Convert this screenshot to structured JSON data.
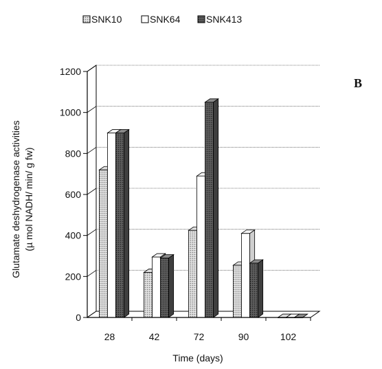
{
  "panel_label": "B",
  "chart_data": {
    "type": "bar",
    "title": "",
    "xlabel": "Time (days)",
    "ylabel_line1": "Glutamate deshydrogenase activities",
    "ylabel_line2": "(µ mol NADH/ min/ g fw)",
    "categories": [
      "28",
      "42",
      "72",
      "90",
      "102"
    ],
    "ylim": [
      0,
      1200
    ],
    "yticks": [
      "0",
      "200",
      "400",
      "600",
      "800",
      "1000",
      "1200"
    ],
    "grid": true,
    "legend_position": "top",
    "series": [
      {
        "name": "SNK10",
        "values": [
          720,
          220,
          425,
          255,
          0
        ],
        "color": "#c8c8c8",
        "pattern": "dots"
      },
      {
        "name": "SNK64",
        "values": [
          900,
          295,
          690,
          410,
          0
        ],
        "color": "#ffffff",
        "pattern": "none"
      },
      {
        "name": "SNK413",
        "values": [
          900,
          290,
          1050,
          265,
          0
        ],
        "color": "#6e6e6e",
        "pattern": "dots"
      }
    ]
  }
}
